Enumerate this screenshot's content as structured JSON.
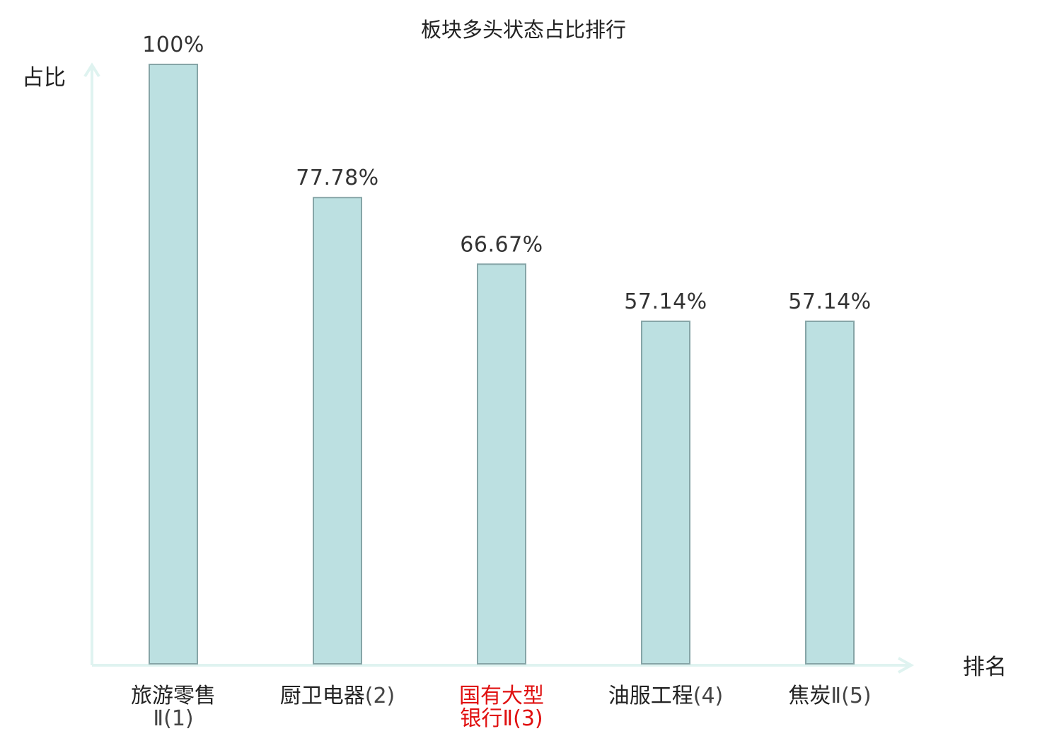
{
  "chart_data": {
    "type": "bar",
    "title": "板块多头状态占比排行",
    "ylabel": "占比",
    "xlabel": "排名",
    "ylim": [
      0,
      100
    ],
    "grid": false,
    "legend": "none",
    "categories": [
      {
        "name_lines": [
          "旅游零售",
          ""
        ],
        "rank_suffix": "Ⅱ(1)",
        "highlight": false
      },
      {
        "name_lines": [
          "厨卫电器",
          ""
        ],
        "rank_suffix": "(2)",
        "highlight": false
      },
      {
        "name_lines": [
          "国有大型",
          "银行"
        ],
        "rank_suffix": "Ⅱ(3)",
        "highlight": true
      },
      {
        "name_lines": [
          "油服工程",
          ""
        ],
        "rank_suffix": "(4)",
        "highlight": false
      },
      {
        "name_lines": [
          "焦炭",
          ""
        ],
        "rank_suffix": "Ⅱ(5)",
        "highlight": false
      }
    ],
    "values": [
      100,
      77.78,
      66.67,
      57.14,
      57.14
    ],
    "value_labels": [
      "100%",
      "77.78%",
      "66.67%",
      "57.14%",
      "57.14%"
    ]
  },
  "colors": {
    "bar_fill": "#bce0e1",
    "bar_stroke": "#86a5a7",
    "axis": "#dff3f0",
    "text": "#222222",
    "highlight": "#e01010"
  }
}
